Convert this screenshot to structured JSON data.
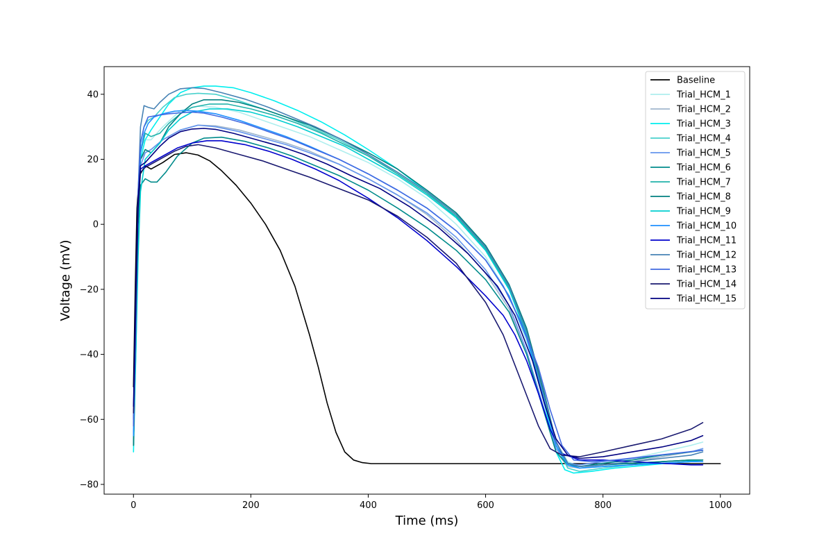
{
  "chart_data": {
    "type": "line",
    "title": "",
    "xlabel": "Time (ms)",
    "ylabel": "Voltage (mV)",
    "xlim": [
      -50,
      1050
    ],
    "ylim": [
      -83,
      48.5
    ],
    "xticks": [
      0,
      200,
      400,
      600,
      800,
      1000
    ],
    "yticks": [
      -80,
      -60,
      -40,
      -20,
      0,
      20,
      40
    ],
    "xtick_labels": [
      "0",
      "200",
      "400",
      "600",
      "800",
      "1000"
    ],
    "ytick_labels": [
      "−80",
      "−60",
      "−40",
      "−20",
      "0",
      "20",
      "40"
    ],
    "grid": false,
    "legend_position": "top-right",
    "series": [
      {
        "name": "Baseline",
        "color": "#000000",
        "x": [
          0,
          3,
          6,
          10,
          20,
          30,
          50,
          70,
          90,
          110,
          130,
          150,
          175,
          200,
          225,
          250,
          275,
          300,
          315,
          330,
          345,
          360,
          375,
          390,
          405,
          420,
          450,
          500,
          600,
          700,
          800,
          900,
          1000
        ],
        "y": [
          -50,
          -20,
          5,
          15,
          18,
          17,
          19,
          21.5,
          22,
          21.3,
          19.5,
          16.5,
          12,
          6.5,
          0,
          -8,
          -19,
          -34,
          -44,
          -55,
          -64,
          -70,
          -72.5,
          -73.3,
          -73.6,
          -73.6,
          -73.6,
          -73.6,
          -73.6,
          -73.6,
          -73.6,
          -73.6,
          -73.6
        ]
      },
      {
        "name": "Trial_HCM_1",
        "color": "#aeeeee",
        "x": [
          0,
          4,
          8,
          12,
          20,
          30,
          50,
          80,
          110,
          140,
          180,
          220,
          260,
          300,
          350,
          400,
          450,
          500,
          550,
          600,
          640,
          670,
          700,
          720,
          740,
          760,
          800,
          850,
          900,
          950,
          970
        ],
        "y": [
          -68,
          -30,
          10,
          24,
          26,
          26,
          30,
          35,
          36.3,
          36,
          34.5,
          32,
          29.5,
          27,
          23,
          19,
          14,
          8,
          0,
          -10,
          -22,
          -36,
          -55,
          -67,
          -73,
          -74.5,
          -73.5,
          -72,
          -70,
          -68,
          -67
        ]
      },
      {
        "name": "Trial_HCM_2",
        "color": "#9fb6cd",
        "x": [
          0,
          4,
          8,
          12,
          20,
          30,
          50,
          80,
          110,
          140,
          180,
          220,
          260,
          300,
          350,
          400,
          450,
          500,
          550,
          600,
          640,
          670,
          700,
          720,
          740,
          760,
          800,
          850,
          900,
          950,
          970
        ],
        "y": [
          -65,
          -30,
          8,
          20,
          22,
          23,
          26,
          29,
          30.5,
          30.3,
          29,
          27,
          25,
          22.5,
          18.5,
          14,
          9,
          3,
          -5,
          -15,
          -26,
          -40,
          -58,
          -70,
          -74.5,
          -75,
          -74,
          -73,
          -71.5,
          -70,
          -69
        ]
      },
      {
        "name": "Trial_HCM_3",
        "color": "#00eeee",
        "x": [
          0,
          4,
          8,
          12,
          20,
          30,
          45,
          60,
          80,
          100,
          120,
          140,
          170,
          200,
          240,
          280,
          320,
          360,
          400,
          450,
          500,
          550,
          600,
          640,
          670,
          700,
          720,
          735,
          750,
          780,
          820,
          880,
          940,
          970
        ],
        "y": [
          -70,
          -40,
          0,
          20,
          26,
          29,
          33,
          37,
          40.5,
          42,
          42.5,
          42.5,
          42,
          40.5,
          38,
          35,
          31.5,
          27.5,
          23,
          17,
          10,
          2,
          -8,
          -20,
          -33,
          -55,
          -70,
          -75.5,
          -76.5,
          -76,
          -75,
          -74,
          -73,
          -72.5
        ]
      },
      {
        "name": "Trial_HCM_4",
        "color": "#48d1cc",
        "x": [
          0,
          4,
          8,
          12,
          18,
          25,
          35,
          50,
          70,
          90,
          110,
          140,
          180,
          220,
          260,
          300,
          350,
          400,
          450,
          500,
          550,
          600,
          640,
          670,
          700,
          720,
          740,
          760,
          800,
          850,
          900,
          950,
          970
        ],
        "y": [
          -68,
          -35,
          5,
          25,
          30,
          32,
          33,
          36,
          39,
          40,
          40.3,
          40,
          38,
          35.5,
          33,
          30,
          26,
          21,
          16,
          10,
          3,
          -7,
          -19,
          -33,
          -53,
          -68,
          -75,
          -76,
          -75,
          -74,
          -73,
          -72.5,
          -72.5
        ]
      },
      {
        "name": "Trial_HCM_5",
        "color": "#6495ed",
        "x": [
          0,
          4,
          8,
          12,
          20,
          30,
          50,
          80,
          110,
          140,
          180,
          220,
          260,
          300,
          350,
          400,
          450,
          500,
          550,
          600,
          640,
          670,
          700,
          720,
          740,
          760,
          800,
          850,
          900,
          950,
          970
        ],
        "y": [
          -65,
          -30,
          5,
          18,
          22,
          23,
          26,
          29,
          30.5,
          30,
          28.5,
          26.5,
          24.5,
          22,
          18.5,
          14,
          9,
          3.5,
          -4,
          -14,
          -25,
          -39,
          -57,
          -69,
          -73.5,
          -74,
          -73,
          -72,
          -71,
          -70,
          -69
        ]
      },
      {
        "name": "Trial_HCM_6",
        "color": "#008b8b",
        "x": [
          0,
          4,
          8,
          12,
          20,
          30,
          40,
          55,
          75,
          100,
          120,
          150,
          190,
          230,
          270,
          310,
          350,
          400,
          450,
          500,
          550,
          600,
          640,
          670,
          700,
          720,
          740,
          760,
          800,
          850,
          900,
          950,
          970
        ],
        "y": [
          -68,
          -35,
          0,
          12,
          14,
          13,
          13,
          16,
          21,
          25,
          26.5,
          26.8,
          25.5,
          23.5,
          21,
          18,
          15,
          10.5,
          5,
          -1,
          -8,
          -17,
          -27,
          -40,
          -58,
          -70,
          -74,
          -74.5,
          -73.5,
          -72.5,
          -71,
          -70,
          -69.5
        ]
      },
      {
        "name": "Trial_HCM_7",
        "color": "#20b2aa",
        "x": [
          0,
          4,
          8,
          12,
          20,
          30,
          45,
          60,
          80,
          100,
          130,
          160,
          200,
          240,
          280,
          320,
          360,
          400,
          450,
          500,
          550,
          600,
          640,
          670,
          700,
          720,
          740,
          760,
          800,
          850,
          900,
          950,
          970
        ],
        "y": [
          -68,
          -35,
          5,
          22,
          28,
          27,
          28,
          31,
          34,
          36,
          37,
          37,
          35.5,
          33.5,
          31,
          28,
          24.5,
          21,
          15.5,
          9.5,
          2.5,
          -7.5,
          -19.5,
          -33,
          -53,
          -67,
          -73.5,
          -74.5,
          -74,
          -73.5,
          -73,
          -72.5,
          -72.5
        ]
      },
      {
        "name": "Trial_HCM_8",
        "color": "#008080",
        "x": [
          0,
          4,
          8,
          12,
          20,
          30,
          45,
          60,
          80,
          100,
          120,
          150,
          180,
          220,
          260,
          300,
          350,
          400,
          450,
          500,
          550,
          600,
          640,
          670,
          700,
          720,
          740,
          760,
          800,
          850,
          900,
          950,
          970
        ],
        "y": [
          -68,
          -35,
          5,
          20,
          23,
          22,
          25,
          30,
          34,
          37,
          38.3,
          38.3,
          37.5,
          35.5,
          33,
          30.5,
          26.5,
          22,
          17,
          10.5,
          3.5,
          -6.5,
          -18.5,
          -32,
          -52,
          -67,
          -73.5,
          -74.5,
          -74,
          -73.5,
          -73,
          -72.5,
          -72.5
        ]
      },
      {
        "name": "Trial_HCM_9",
        "color": "#00ced1",
        "x": [
          0,
          4,
          8,
          12,
          20,
          30,
          45,
          60,
          80,
          100,
          130,
          160,
          200,
          240,
          280,
          320,
          360,
          400,
          450,
          500,
          550,
          600,
          640,
          670,
          700,
          720,
          740,
          760,
          800,
          850,
          900,
          950,
          970
        ],
        "y": [
          -62,
          -40,
          -10,
          10,
          20,
          22,
          25,
          29,
          32.5,
          34.5,
          35.5,
          35.5,
          34.5,
          32.5,
          30,
          27,
          24,
          20,
          15,
          9,
          2,
          -8,
          -20,
          -34,
          -54,
          -68,
          -74,
          -75,
          -74.5,
          -74,
          -73.5,
          -73,
          -73
        ]
      },
      {
        "name": "Trial_HCM_10",
        "color": "#1e90ff",
        "x": [
          0,
          4,
          8,
          12,
          18,
          25,
          35,
          50,
          70,
          90,
          110,
          140,
          180,
          220,
          260,
          300,
          350,
          400,
          450,
          500,
          550,
          600,
          640,
          670,
          700,
          720,
          740,
          760,
          800,
          850,
          900,
          950,
          970
        ],
        "y": [
          -65,
          -30,
          5,
          22,
          28,
          31,
          33,
          34,
          34.8,
          35,
          34.8,
          34,
          32,
          29.5,
          27,
          24,
          20,
          15.5,
          10.5,
          5,
          -2,
          -11,
          -22,
          -35,
          -54,
          -68,
          -74,
          -75,
          -74.5,
          -74,
          -73.5,
          -73,
          -73
        ]
      },
      {
        "name": "Trial_HCM_11",
        "color": "#0000cd",
        "x": [
          0,
          4,
          8,
          12,
          20,
          30,
          40,
          55,
          75,
          100,
          125,
          150,
          190,
          230,
          270,
          310,
          350,
          400,
          450,
          500,
          550,
          600,
          630,
          650,
          670,
          690,
          710,
          730,
          760,
          800,
          850,
          900,
          950,
          970
        ],
        "y": [
          -60,
          -25,
          8,
          17,
          18,
          19,
          20,
          21.5,
          23.5,
          25,
          25.7,
          25.7,
          24.5,
          22.5,
          20,
          17,
          13.5,
          8,
          2,
          -5,
          -13,
          -22,
          -28,
          -34,
          -42,
          -52,
          -63,
          -70.5,
          -72.5,
          -72.5,
          -73,
          -73.5,
          -74,
          -74
        ]
      },
      {
        "name": "Trial_HCM_12",
        "color": "#4682b4",
        "x": [
          0,
          4,
          8,
          12,
          18,
          25,
          35,
          45,
          60,
          80,
          100,
          120,
          150,
          190,
          230,
          270,
          310,
          350,
          400,
          450,
          500,
          550,
          600,
          640,
          670,
          700,
          720,
          740,
          760,
          800,
          850,
          900,
          950,
          970
        ],
        "y": [
          -62,
          -30,
          10,
          30,
          36.5,
          36,
          35.5,
          37.5,
          40,
          41.7,
          42,
          41.8,
          40.5,
          38.5,
          36,
          33,
          30,
          26.5,
          21.5,
          16,
          10,
          3,
          -7,
          -19,
          -33,
          -53,
          -67,
          -73.5,
          -74.5,
          -74,
          -73,
          -72,
          -71,
          -70
        ]
      },
      {
        "name": "Trial_HCM_13",
        "color": "#4169e1",
        "x": [
          0,
          4,
          8,
          12,
          18,
          25,
          40,
          60,
          80,
          100,
          120,
          150,
          190,
          230,
          270,
          310,
          350,
          400,
          450,
          500,
          550,
          600,
          630,
          660,
          690,
          710,
          730,
          750,
          780,
          820,
          870,
          920,
          970
        ],
        "y": [
          -62,
          -30,
          10,
          25,
          30,
          33,
          33.5,
          34,
          34.3,
          34.5,
          34.2,
          33,
          31,
          28.5,
          26,
          23,
          20,
          15.5,
          10.5,
          5,
          -2,
          -11,
          -19,
          -30,
          -44,
          -57,
          -68,
          -72.5,
          -73,
          -72.5,
          -71.5,
          -70.5,
          -69.5
        ]
      },
      {
        "name": "Trial_HCM_14",
        "color": "#191970",
        "x": [
          0,
          4,
          8,
          12,
          20,
          30,
          50,
          70,
          90,
          110,
          140,
          180,
          220,
          260,
          300,
          350,
          400,
          450,
          500,
          550,
          600,
          630,
          660,
          690,
          710,
          730,
          760,
          800,
          850,
          900,
          950,
          970
        ],
        "y": [
          -58,
          -25,
          5,
          16,
          17.5,
          18.5,
          20.5,
          22.5,
          24,
          24.5,
          23.5,
          21.5,
          19.5,
          17,
          14.5,
          11,
          7.5,
          2.5,
          -4,
          -12,
          -24,
          -34,
          -48,
          -62,
          -69,
          -71,
          -71.5,
          -70,
          -68,
          -66,
          -63,
          -61
        ]
      },
      {
        "name": "Trial_HCM_15",
        "color": "#000080",
        "x": [
          0,
          4,
          8,
          12,
          20,
          30,
          45,
          60,
          80,
          100,
          120,
          140,
          170,
          210,
          250,
          290,
          330,
          370,
          420,
          470,
          520,
          570,
          620,
          650,
          680,
          700,
          720,
          740,
          760,
          800,
          850,
          900,
          950,
          970
        ],
        "y": [
          -56,
          -20,
          8,
          18,
          19,
          21,
          24,
          26.5,
          28.5,
          29.3,
          29.5,
          29.2,
          28,
          26,
          24,
          21.5,
          18.5,
          15,
          11,
          5.5,
          -1,
          -9,
          -19,
          -28,
          -42,
          -55,
          -66,
          -71,
          -72,
          -71.5,
          -70,
          -68.5,
          -66.5,
          -65
        ]
      }
    ]
  }
}
